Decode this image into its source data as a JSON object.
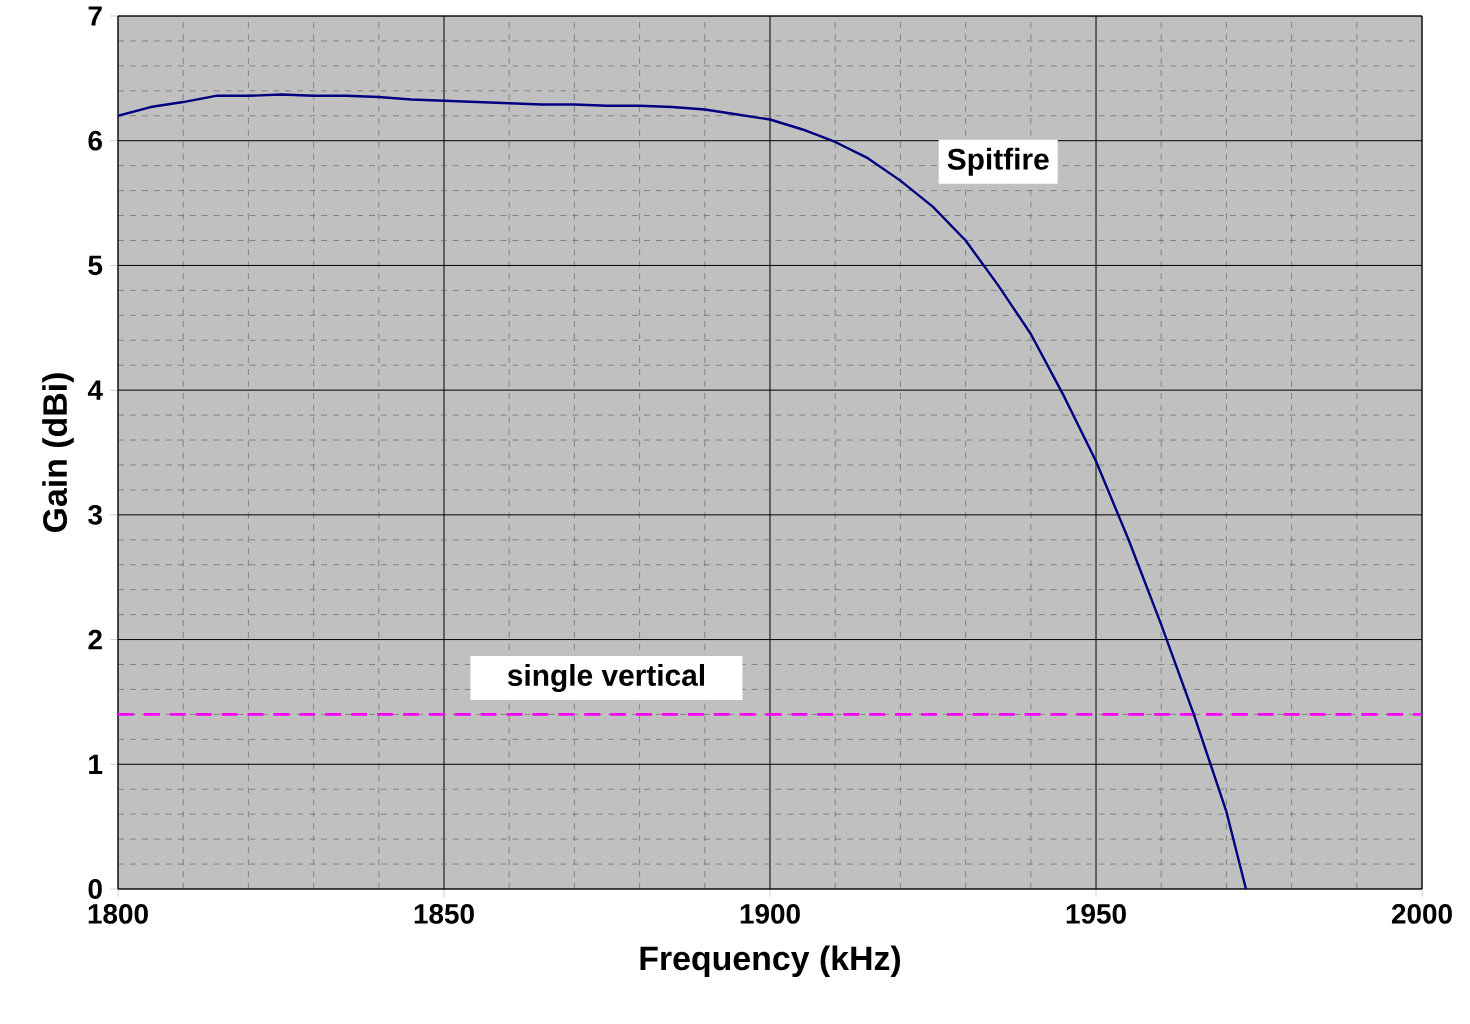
{
  "chart_data": {
    "type": "line",
    "xlabel": "Frequency (kHz)",
    "ylabel": "Gain (dBi)",
    "x": [
      1800,
      1805,
      1810,
      1815,
      1820,
      1825,
      1830,
      1835,
      1840,
      1845,
      1850,
      1855,
      1860,
      1865,
      1870,
      1875,
      1880,
      1885,
      1890,
      1895,
      1900,
      1905,
      1910,
      1915,
      1920,
      1925,
      1930,
      1935,
      1940,
      1945,
      1950,
      1955,
      1960,
      1965,
      1970,
      1973
    ],
    "series": [
      {
        "name": "Spitfire",
        "color": "#000080",
        "values": [
          6.2,
          6.27,
          6.31,
          6.36,
          6.36,
          6.37,
          6.36,
          6.36,
          6.35,
          6.33,
          6.32,
          6.31,
          6.3,
          6.29,
          6.29,
          6.28,
          6.28,
          6.27,
          6.25,
          6.21,
          6.17,
          6.09,
          5.99,
          5.86,
          5.68,
          5.47,
          5.2,
          4.84,
          4.45,
          3.96,
          3.43,
          2.8,
          2.12,
          1.4,
          0.62,
          0
        ]
      }
    ],
    "xlim": [
      1800,
      2000
    ],
    "xticks": [
      1800,
      1850,
      1900,
      1950,
      2000
    ],
    "ylim": [
      0,
      7
    ],
    "yticks": [
      0,
      1,
      2,
      3,
      4,
      5,
      6,
      7
    ],
    "grid": true,
    "ref_lines": [
      {
        "axis": "y",
        "value": 1.4,
        "label": "single vertical",
        "color": "#ff00ff",
        "line_style": "dashed"
      }
    ]
  }
}
